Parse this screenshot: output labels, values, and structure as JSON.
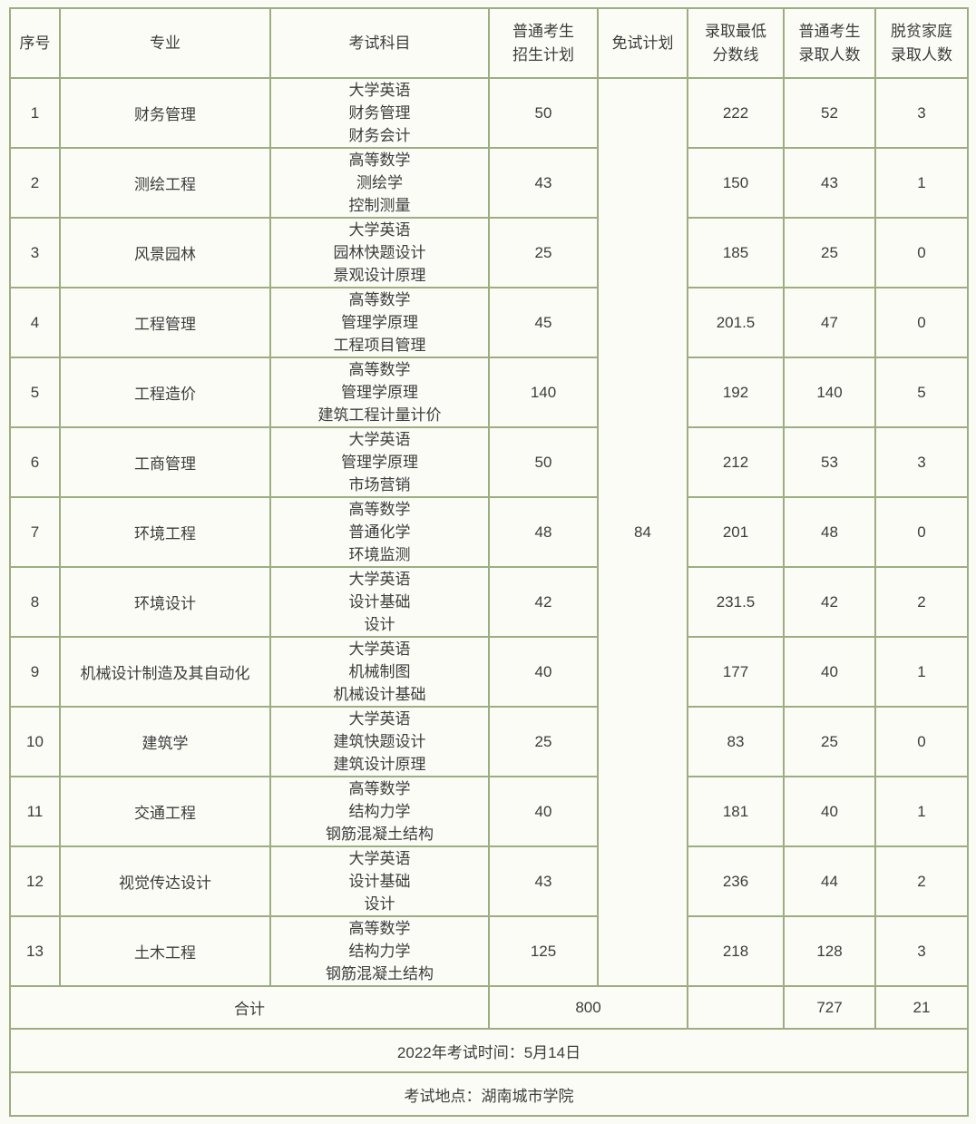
{
  "colors": {
    "border": "#9dad81",
    "background": "#fbfbf5",
    "text": "#3c3c3c"
  },
  "table": {
    "headers": [
      {
        "id": "no",
        "lines": [
          "序号"
        ]
      },
      {
        "id": "major",
        "lines": [
          "专业"
        ]
      },
      {
        "id": "subjects",
        "lines": [
          "考试科目"
        ]
      },
      {
        "id": "plan",
        "lines": [
          "普通考生",
          "招生计划"
        ]
      },
      {
        "id": "exemption",
        "lines": [
          "免试计划"
        ]
      },
      {
        "id": "min-score",
        "lines": [
          "录取最低",
          "分数线"
        ]
      },
      {
        "id": "admitted",
        "lines": [
          "普通考生",
          "录取人数"
        ]
      },
      {
        "id": "poverty",
        "lines": [
          "脱贫家庭",
          "录取人数"
        ]
      }
    ],
    "exemption_total": "84",
    "rows": [
      {
        "no": "1",
        "major": "财务管理",
        "subjects": [
          "大学英语",
          "财务管理",
          "财务会计"
        ],
        "plan": "50",
        "min_score": "222",
        "admitted": "52",
        "poverty": "3"
      },
      {
        "no": "2",
        "major": "测绘工程",
        "subjects": [
          "高等数学",
          "测绘学",
          "控制测量"
        ],
        "plan": "43",
        "min_score": "150",
        "admitted": "43",
        "poverty": "1"
      },
      {
        "no": "3",
        "major": "风景园林",
        "subjects": [
          "大学英语",
          "园林快题设计",
          "景观设计原理"
        ],
        "plan": "25",
        "min_score": "185",
        "admitted": "25",
        "poverty": "0"
      },
      {
        "no": "4",
        "major": "工程管理",
        "subjects": [
          "高等数学",
          "管理学原理",
          "工程项目管理"
        ],
        "plan": "45",
        "min_score": "201.5",
        "admitted": "47",
        "poverty": "0"
      },
      {
        "no": "5",
        "major": "工程造价",
        "subjects": [
          "高等数学",
          "管理学原理",
          "建筑工程计量计价"
        ],
        "plan": "140",
        "min_score": "192",
        "admitted": "140",
        "poverty": "5"
      },
      {
        "no": "6",
        "major": "工商管理",
        "subjects": [
          "大学英语",
          "管理学原理",
          "市场营销"
        ],
        "plan": "50",
        "min_score": "212",
        "admitted": "53",
        "poverty": "3"
      },
      {
        "no": "7",
        "major": "环境工程",
        "subjects": [
          "高等数学",
          "普通化学",
          "环境监测"
        ],
        "plan": "48",
        "min_score": "201",
        "admitted": "48",
        "poverty": "0"
      },
      {
        "no": "8",
        "major": "环境设计",
        "subjects": [
          "大学英语",
          "设计基础",
          "设计"
        ],
        "plan": "42",
        "min_score": "231.5",
        "admitted": "42",
        "poverty": "2"
      },
      {
        "no": "9",
        "major": "机械设计制造及其自动化",
        "subjects": [
          "大学英语",
          "机械制图",
          "机械设计基础"
        ],
        "plan": "40",
        "min_score": "177",
        "admitted": "40",
        "poverty": "1"
      },
      {
        "no": "10",
        "major": "建筑学",
        "subjects": [
          "大学英语",
          "建筑快题设计",
          "建筑设计原理"
        ],
        "plan": "25",
        "min_score": "83",
        "admitted": "25",
        "poverty": "0"
      },
      {
        "no": "11",
        "major": "交通工程",
        "subjects": [
          "高等数学",
          "结构力学",
          "钢筋混凝土结构"
        ],
        "plan": "40",
        "min_score": "181",
        "admitted": "40",
        "poverty": "1"
      },
      {
        "no": "12",
        "major": "视觉传达设计",
        "subjects": [
          "大学英语",
          "设计基础",
          "设计"
        ],
        "plan": "43",
        "min_score": "236",
        "admitted": "44",
        "poverty": "2"
      },
      {
        "no": "13",
        "major": "土木工程",
        "subjects": [
          "高等数学",
          "结构力学",
          "钢筋混凝土结构"
        ],
        "plan": "125",
        "min_score": "218",
        "admitted": "128",
        "poverty": "3"
      }
    ],
    "total_row": {
      "label": "合计",
      "plan_total": "800",
      "min_score": "",
      "admitted_total": "727",
      "poverty_total": "21"
    },
    "exam_time": "2022年考试时间：5月14日",
    "exam_location": "考试地点：湖南城市学院"
  }
}
